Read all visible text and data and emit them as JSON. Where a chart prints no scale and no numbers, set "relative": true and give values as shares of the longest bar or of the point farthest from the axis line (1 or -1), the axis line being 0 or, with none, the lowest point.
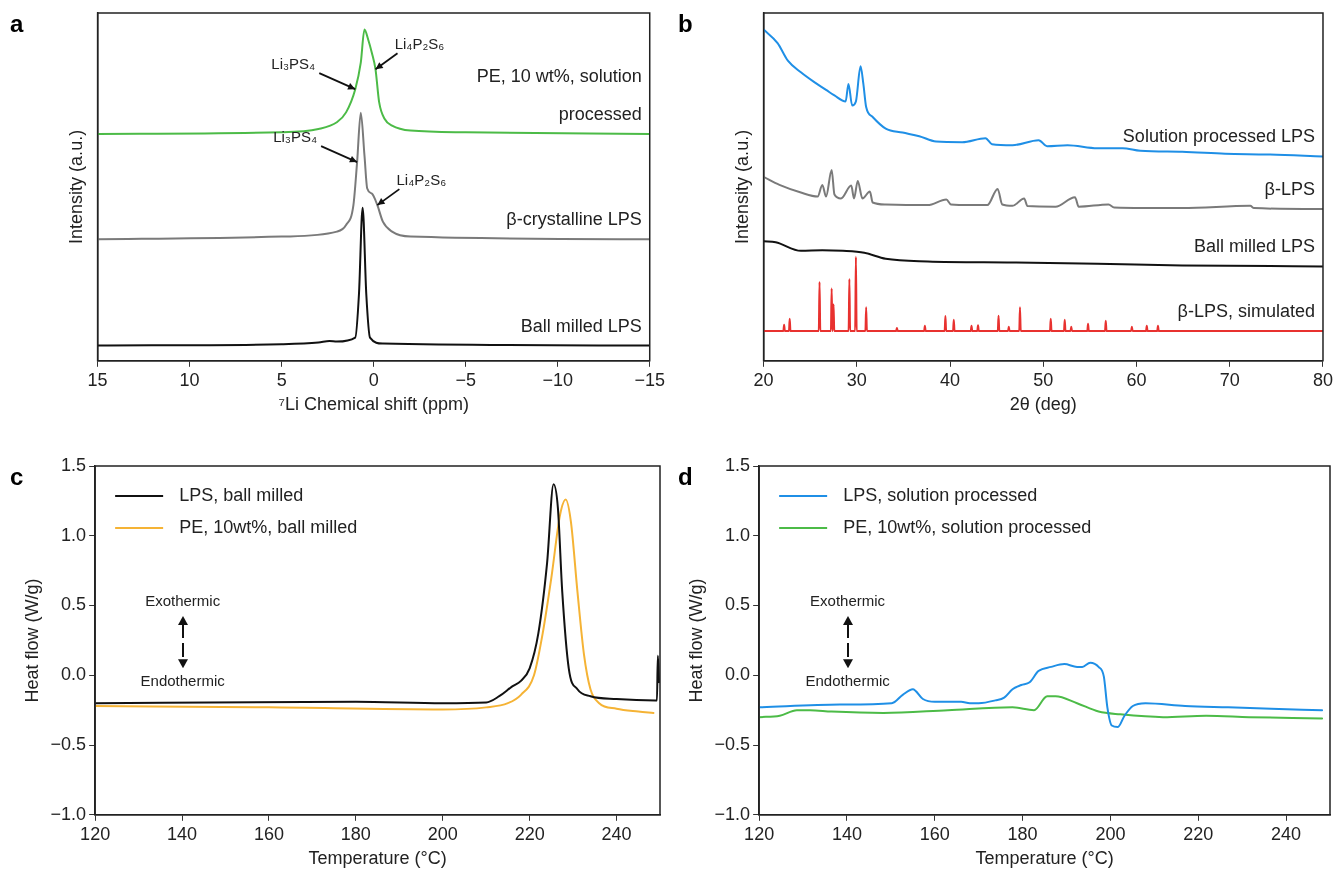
{
  "chart_data": [
    {
      "type": "line",
      "title": "a",
      "xlabel": "⁷Li Chemical shift (ppm)",
      "ylabel": "Intensity (a.u.)",
      "relative": true,
      "xlim": [
        15,
        -15
      ],
      "xticks": [
        15,
        10,
        5,
        0,
        {
          "value": -5,
          "label": "−5"
        },
        {
          "value": -10,
          "label": "−10"
        },
        {
          "value": -15,
          "label": "−15"
        }
      ],
      "series": [
        {
          "name": "PE, 10 wt%, solution processed",
          "color": "#4cbb47",
          "x": [
            15,
            5,
            3,
            2,
            1.5,
            1,
            0.7,
            0.5,
            0.3,
            0.1,
            -0.1,
            -0.3,
            -0.6,
            -1,
            -2,
            -5,
            -15
          ],
          "values": [
            0.685,
            0.69,
            0.7,
            0.72,
            0.75,
            0.82,
            0.9,
            1.0,
            0.97,
            0.93,
            0.88,
            0.78,
            0.73,
            0.71,
            0.695,
            0.69,
            0.685
          ]
        },
        {
          "name": "β-crystalline LPS",
          "color": "#7a7a7a",
          "x": [
            15,
            5,
            2,
            1.5,
            1.1,
            0.9,
            0.7,
            0.5,
            0.35,
            0.1,
            -0.2,
            -0.5,
            -1,
            -2,
            -15
          ],
          "values": [
            0.367,
            0.375,
            0.39,
            0.41,
            0.47,
            0.6,
            0.749,
            0.62,
            0.52,
            0.505,
            0.47,
            0.42,
            0.39,
            0.375,
            0.367
          ]
        },
        {
          "name": "Ball milled LPS",
          "color": "#111111",
          "x": [
            15,
            5,
            3,
            2.4,
            2,
            1,
            0.8,
            0.6,
            0.4,
            0.2,
            -0.5,
            -15
          ],
          "values": [
            0.046,
            0.05,
            0.055,
            0.06,
            0.058,
            0.07,
            0.2,
            0.462,
            0.2,
            0.07,
            0.052,
            0.046
          ]
        }
      ],
      "annotations": [
        {
          "text": "Li₃PS₄",
          "x": 1,
          "y": 0.82
        },
        {
          "text": "Li₄P₂S₆",
          "x": -0.1,
          "y": 0.88
        },
        {
          "text": "Li₃PS₄",
          "x": 0.9,
          "y": 0.6
        },
        {
          "text": "Li₄P₂S₆",
          "x": -0.2,
          "y": 0.47
        }
      ]
    },
    {
      "type": "line",
      "title": "b",
      "xlabel": "2θ (deg)",
      "ylabel": "Intensity (a.u.)",
      "relative": true,
      "xlim": [
        20,
        80
      ],
      "xticks": [
        20,
        30,
        40,
        50,
        60,
        70,
        80
      ],
      "series": [
        {
          "name": "Solution processed LPS",
          "color": "#1f8fe6",
          "x": [
            20,
            21.5,
            22.6,
            24,
            25.4,
            26.7,
            27.6,
            28.8,
            29.1,
            29.5,
            29.9,
            30.4,
            30.7,
            31,
            31.7,
            33.1,
            34.9,
            36.7,
            38.5,
            41.3,
            43.8,
            44.5,
            46.7,
            49.5,
            50.4,
            52.6,
            55.8,
            58.5,
            60.4,
            64.9,
            69.5,
            74,
            80
          ],
          "values": [
            1.0,
            0.959,
            0.906,
            0.871,
            0.842,
            0.818,
            0.801,
            0.783,
            0.836,
            0.771,
            0.783,
            0.889,
            0.836,
            0.766,
            0.736,
            0.701,
            0.689,
            0.678,
            0.662,
            0.66,
            0.672,
            0.654,
            0.651,
            0.666,
            0.648,
            0.651,
            0.642,
            0.642,
            0.634,
            0.631,
            0.625,
            0.623,
            0.617
          ]
        },
        {
          "name": "β-LPS",
          "color": "#7a7a7a",
          "x": [
            20,
            21.7,
            24,
            25.8,
            26.3,
            26.7,
            27.3,
            27.6,
            28.3,
            29.4,
            29.7,
            30.1,
            30.6,
            31.4,
            31.7,
            33.1,
            37.6,
            39.6,
            40.1,
            42.2,
            44,
            45.1,
            45.6,
            46.7,
            47.95,
            48.3,
            51.3,
            53.4,
            53.8,
            57,
            57.6,
            64.9,
            72.2,
            72.6,
            80
          ],
          "values": [
            0.555,
            0.531,
            0.508,
            0.496,
            0.531,
            0.496,
            0.576,
            0.502,
            0.49,
            0.529,
            0.49,
            0.543,
            0.49,
            0.511,
            0.478,
            0.472,
            0.47,
            0.487,
            0.472,
            0.47,
            0.47,
            0.519,
            0.472,
            0.468,
            0.49,
            0.467,
            0.465,
            0.494,
            0.465,
            0.472,
            0.463,
            0.461,
            0.468,
            0.461,
            0.458
          ]
        },
        {
          "name": "Ball milled LPS",
          "color": "#111111",
          "x": [
            20,
            21.3,
            24,
            26.3,
            28.5,
            30.8,
            33.1,
            37.6,
            46.7,
            55.8,
            64.9,
            80
          ],
          "values": [
            0.361,
            0.358,
            0.332,
            0.334,
            0.332,
            0.326,
            0.308,
            0.3,
            0.297,
            0.293,
            0.288,
            0.285
          ]
        },
        {
          "name": "β-LPS, simulated",
          "color": "#e8312f",
          "x": [
            20,
            22.12,
            22.2,
            22.28,
            22.72,
            22.8,
            22.88,
            25.92,
            26,
            26.08,
            27.22,
            27.3,
            27.38,
            27.42,
            27.5,
            27.58,
            29.12,
            29.2,
            29.28,
            29.82,
            29.9,
            29.98,
            30.92,
            31,
            31.08,
            34.22,
            34.3,
            34.38,
            37.22,
            37.3,
            37.38,
            39.42,
            39.5,
            39.58,
            40.32,
            40.4,
            40.48,
            42.22,
            42.3,
            42.38,
            42.92,
            43,
            43.08,
            45.12,
            45.2,
            45.28,
            46.22,
            46.3,
            46.38,
            47.42,
            47.5,
            47.58,
            50.72,
            50.8,
            50.88,
            52.22,
            52.3,
            52.38,
            52.92,
            53,
            53.08,
            54.72,
            54.8,
            54.88,
            56.62,
            56.7,
            56.78,
            59.42,
            59.5,
            59.58,
            61.02,
            61.1,
            61.18,
            62.22,
            62.3,
            62.38,
            80
          ],
          "values": [
            0.09,
            0.09,
            0.109,
            0.09,
            0.09,
            0.127,
            0.09,
            0.09,
            0.238,
            0.09,
            0.09,
            0.218,
            0.09,
            0.09,
            0.171,
            0.09,
            0.09,
            0.247,
            0.09,
            0.09,
            0.314,
            0.09,
            0.09,
            0.162,
            0.09,
            0.09,
            0.099,
            0.09,
            0.09,
            0.106,
            0.09,
            0.09,
            0.135,
            0.09,
            0.09,
            0.124,
            0.09,
            0.09,
            0.106,
            0.09,
            0.09,
            0.107,
            0.09,
            0.09,
            0.136,
            0.09,
            0.09,
            0.103,
            0.09,
            0.09,
            0.162,
            0.09,
            0.09,
            0.127,
            0.09,
            0.09,
            0.124,
            0.09,
            0.09,
            0.103,
            0.09,
            0.09,
            0.112,
            0.09,
            0.09,
            0.121,
            0.09,
            0.09,
            0.103,
            0.09,
            0.09,
            0.106,
            0.09,
            0.09,
            0.106,
            0.09,
            0.09
          ]
        }
      ]
    },
    {
      "type": "line",
      "title": "c",
      "xlabel": "Temperature (°C)",
      "ylabel": "Heat flow (W/g)",
      "xlim": [
        120,
        250
      ],
      "xticks": [
        120,
        140,
        160,
        180,
        200,
        220,
        240
      ],
      "ylim": [
        -1,
        1.5
      ],
      "yticks": [
        {
          "value": -1,
          "label": "−1.0"
        },
        {
          "value": -0.5,
          "label": "−0.5"
        },
        {
          "value": 0,
          "label": "0.0"
        },
        {
          "value": 0.5,
          "label": "0.5"
        },
        {
          "value": 1,
          "label": "1.0"
        },
        {
          "value": 1.5,
          "label": "1.5"
        }
      ],
      "legend": "top left",
      "series": [
        {
          "name": "LPS, ball milled",
          "color": "#111111",
          "x": [
            120,
            180,
            200,
            210,
            213,
            216,
            218,
            220,
            222,
            224,
            225.5,
            226.5,
            227.5,
            229,
            231,
            234,
            240,
            249,
            249.3,
            249.5,
            249.8
          ],
          "values": [
            -0.2,
            -0.19,
            -0.2,
            -0.195,
            -0.15,
            -0.08,
            -0.04,
            0.05,
            0.3,
            0.8,
            1.37,
            1.2,
            0.6,
            0.05,
            -0.1,
            -0.15,
            -0.17,
            -0.18,
            -0.18,
            0.14,
            -0.05
          ]
        },
        {
          "name": "PE, 10wt%, ball milled",
          "color": "#f5b335",
          "x": [
            120,
            160,
            200,
            210,
            215,
            218,
            221,
            223,
            225,
            227,
            228.3,
            229.5,
            231,
            232.5,
            234,
            236,
            240,
            245,
            248.5
          ],
          "values": [
            -0.22,
            -0.23,
            -0.245,
            -0.23,
            -0.2,
            -0.14,
            0.0,
            0.3,
            0.7,
            1.15,
            1.26,
            1.1,
            0.6,
            0.15,
            -0.1,
            -0.2,
            -0.24,
            -0.26,
            -0.27
          ]
        }
      ],
      "annotations": [
        "Exothermic",
        "Endothermic"
      ]
    },
    {
      "type": "line",
      "title": "d",
      "xlabel": "Temperature (°C)",
      "ylabel": "Heat flow (W/g)",
      "xlim": [
        120,
        250
      ],
      "xticks": [
        120,
        140,
        160,
        180,
        200,
        220,
        240
      ],
      "ylim": [
        -1,
        1.5
      ],
      "yticks": [
        {
          "value": -1,
          "label": "−1.0"
        },
        {
          "value": -0.5,
          "label": "−0.5"
        },
        {
          "value": 0,
          "label": "0.0"
        },
        {
          "value": 0.5,
          "label": "0.5"
        },
        {
          "value": 1,
          "label": "1.0"
        },
        {
          "value": 1.5,
          "label": "1.5"
        }
      ],
      "legend": "top left",
      "series": [
        {
          "name": "LPS, solution processed",
          "color": "#1f8fe6",
          "x": [
            120,
            138.4,
            150.2,
            152.7,
            155,
            157.3,
            160,
            166,
            168,
            170,
            173.8,
            175.8,
            177.7,
            179.7,
            181.6,
            183.6,
            186.5,
            189.5,
            192.4,
            193.6,
            195.4,
            197.3,
            198.5,
            199.3,
            200.3,
            201.7,
            203.2,
            205.1,
            208,
            217,
            226.8,
            236.6,
            248.2
          ],
          "values": [
            -0.23,
            -0.21,
            -0.2,
            -0.14,
            -0.1,
            -0.17,
            -0.19,
            -0.19,
            -0.2,
            -0.2,
            -0.18,
            -0.16,
            -0.1,
            -0.07,
            -0.05,
            0.03,
            0.06,
            0.08,
            0.06,
            0.06,
            0.09,
            0.06,
            -0.01,
            -0.23,
            -0.36,
            -0.37,
            -0.29,
            -0.22,
            -0.2,
            -0.22,
            -0.23,
            -0.24,
            -0.25
          ]
        },
        {
          "name": "PE, 10wt%, solution processed",
          "color": "#4cbb47",
          "x": [
            120,
            124.7,
            128.6,
            131.6,
            136.5,
            148.3,
            163,
            177.7,
            182.6,
            185.6,
            187.5,
            192.4,
            197.3,
            202.2,
            212,
            221.8,
            231.6,
            248.2
          ],
          "values": [
            -0.3,
            -0.29,
            -0.25,
            -0.25,
            -0.26,
            -0.27,
            -0.25,
            -0.23,
            -0.25,
            -0.15,
            -0.15,
            -0.2,
            -0.26,
            -0.28,
            -0.3,
            -0.29,
            -0.3,
            -0.31
          ]
        }
      ],
      "annotations": [
        "Exothermic",
        "Endothermic"
      ]
    }
  ]
}
